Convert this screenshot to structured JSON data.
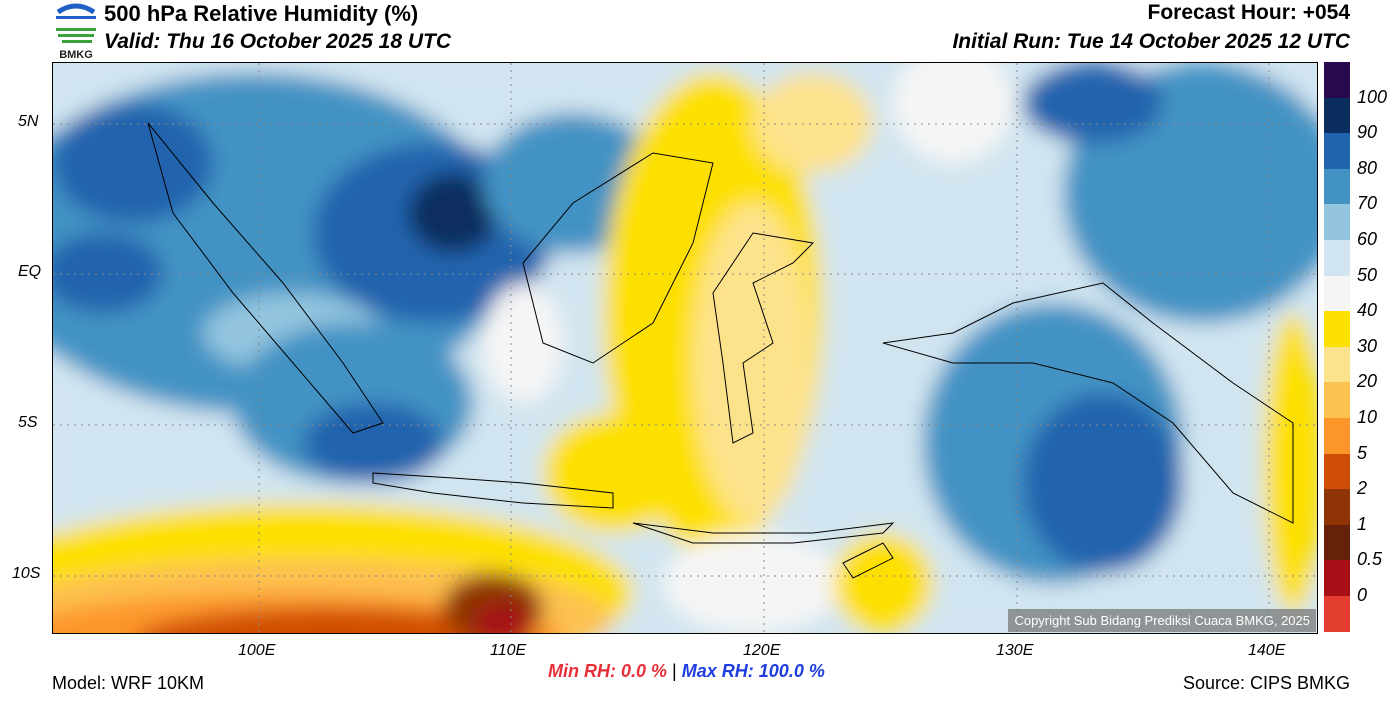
{
  "header": {
    "title": "500 hPa Relative Humidity (%)",
    "valid": "Valid: Thu 16 October 2025 18 UTC",
    "forecast_hour": "Forecast Hour: +054",
    "initial_run": "Initial Run: Tue 14 October 2025 12 UTC",
    "logo_text": "BMKG"
  },
  "colorbar": {
    "labels": [
      "100",
      "90",
      "80",
      "70",
      "60",
      "50",
      "40",
      "30",
      "20",
      "10",
      "5",
      "2",
      "1",
      "0.5",
      "0"
    ],
    "colors": [
      "#2a0a4e",
      "#0b2d5e",
      "#2064ad",
      "#4293c4",
      "#93c5df",
      "#d1e5f0",
      "#f5f5f5",
      "#fde000",
      "#fde28c",
      "#fdc150",
      "#fd962a",
      "#cf4d04",
      "#8f3404",
      "#65210a",
      "#a50f15",
      "#e23d2e"
    ]
  },
  "axes": {
    "lat_labels": [
      "5N",
      "EQ",
      "5S",
      "10S"
    ],
    "lon_labels": [
      "100E",
      "110E",
      "120E",
      "130E",
      "140E"
    ]
  },
  "footer": {
    "model": "Model: WRF 10KM",
    "min_label": "Min RH:",
    "min_value": "0.0 %",
    "separator": "|",
    "max_label": "Max RH:",
    "max_value": "100.0 %",
    "source": "Source: CIPS BMKG",
    "copyright": "Copyright Sub Bidang Prediksi Cuaca BMKG, 2025"
  }
}
